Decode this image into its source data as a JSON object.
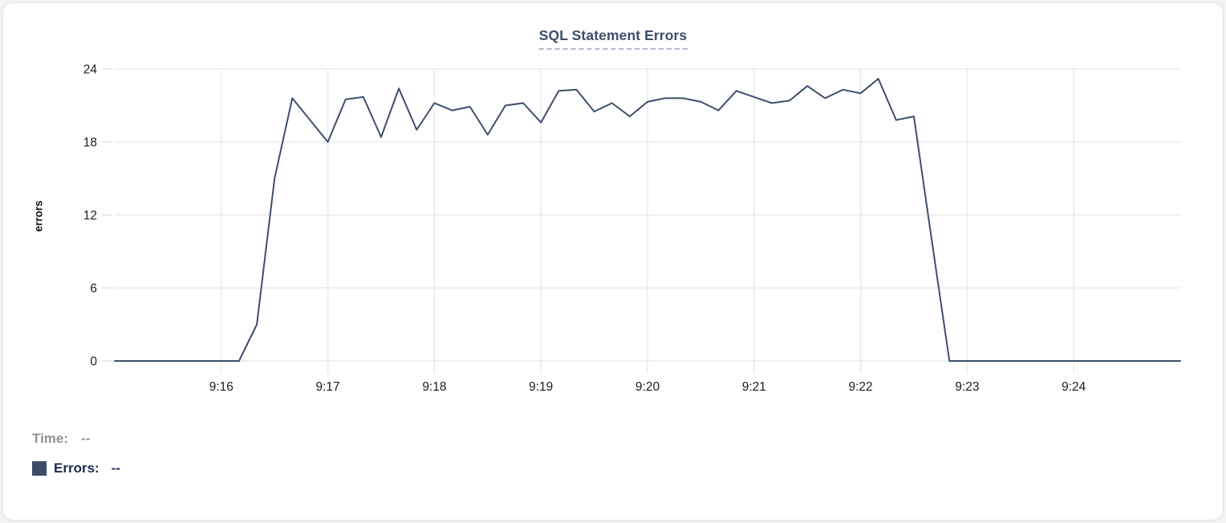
{
  "card": {
    "title": "SQL Statement Errors"
  },
  "legend": {
    "time_label": "Time:",
    "time_value": "--",
    "errors_label": "Errors:",
    "errors_value": "--",
    "swatch_color": "#3d4c69"
  },
  "colors": {
    "line": "#3f4e6e",
    "grid": "#ebebed",
    "title": "#3d4e6d",
    "title_underline": "#b3bdd6",
    "tick_text": "#1d1d1f",
    "time_text": "#8d9095",
    "errors_text": "#1d2b52",
    "card_border": "#e3e3e6"
  },
  "chart_data": {
    "type": "line",
    "title": "SQL Statement Errors",
    "xlabel": "",
    "ylabel": "errors",
    "x_start": "9:15:00",
    "x_end": "9:25:00",
    "interval_s": 10,
    "x_tick_labels": [
      "9:16",
      "9:17",
      "9:18",
      "9:19",
      "9:20",
      "9:21",
      "9:22",
      "9:23",
      "9:24"
    ],
    "x_tick_offsets_s": [
      60,
      120,
      180,
      240,
      300,
      360,
      420,
      480,
      540
    ],
    "y_ticks": [
      0,
      6,
      12,
      18,
      24
    ],
    "ylim": [
      0,
      24
    ],
    "grid": true,
    "legend_position": "bottom-left",
    "series": [
      {
        "name": "Errors",
        "color": "#3f4e6e",
        "values": [
          0,
          0,
          0,
          0,
          0,
          0,
          0,
          0,
          3,
          15,
          21.6,
          19.8,
          18,
          21.5,
          21.7,
          18.4,
          22.4,
          19,
          21.2,
          20.6,
          20.9,
          18.6,
          21,
          21.2,
          19.6,
          22.2,
          22.3,
          20.5,
          21.2,
          20.1,
          21.3,
          21.6,
          21.6,
          21.3,
          20.6,
          22.2,
          21.7,
          21.2,
          21.4,
          22.6,
          21.6,
          22.3,
          22,
          23.2,
          19.8,
          20.1,
          10,
          0,
          0,
          0,
          0,
          0,
          0,
          0,
          0,
          0,
          0,
          0,
          0,
          0,
          0
        ]
      }
    ]
  }
}
